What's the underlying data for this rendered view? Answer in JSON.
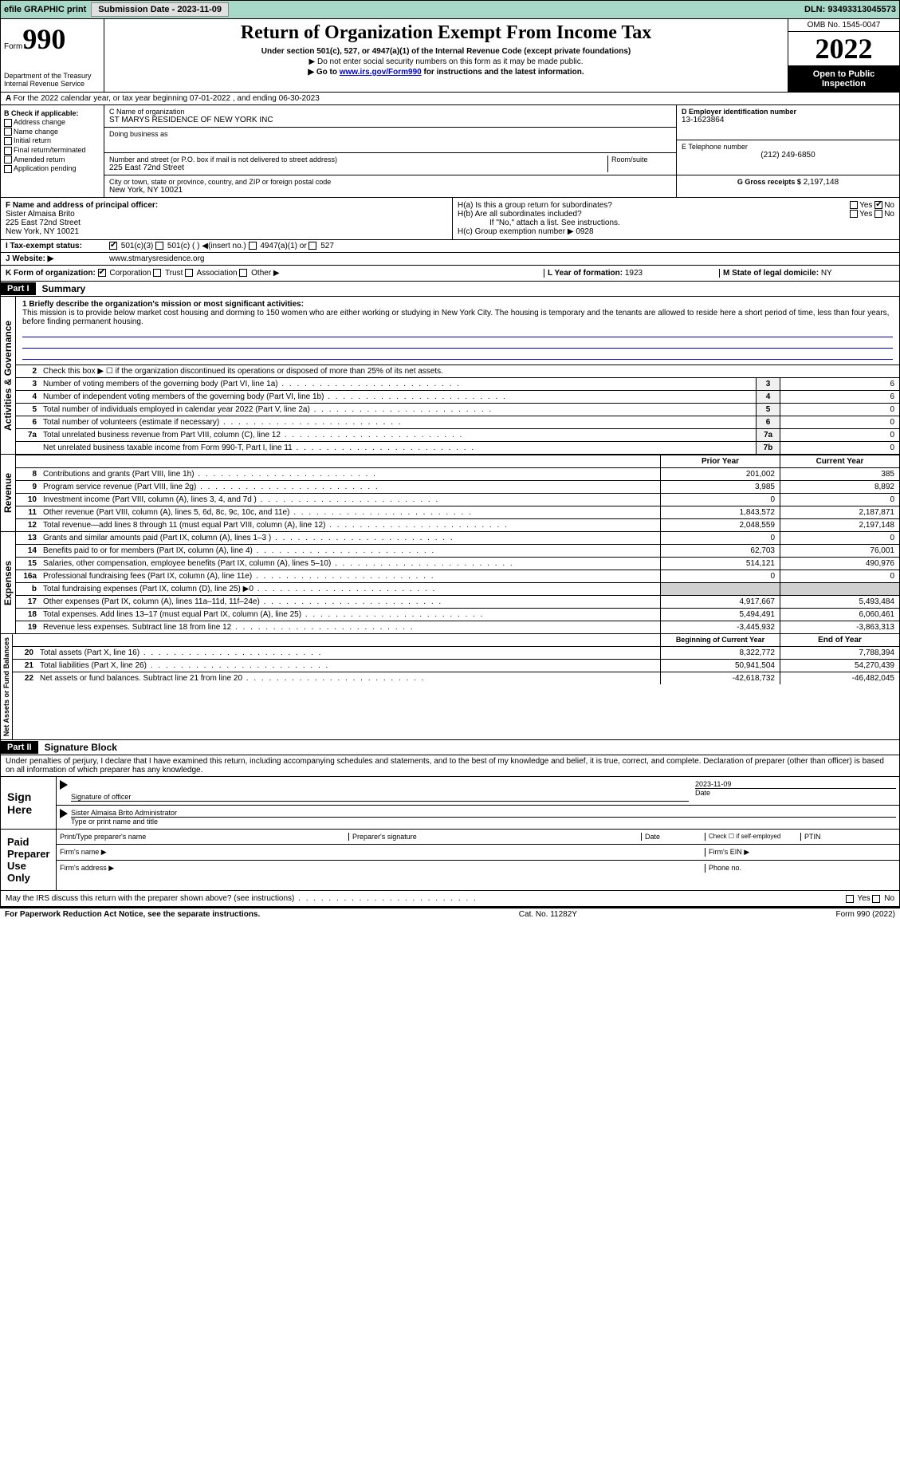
{
  "topbar": {
    "efile": "efile GRAPHIC print",
    "submit_btn": "Submission Date - 2023-11-09",
    "dln_label": "DLN:",
    "dln": "93493313045573"
  },
  "header": {
    "form_label": "Form",
    "form_num": "990",
    "dept": "Department of the Treasury",
    "irs": "Internal Revenue Service",
    "title": "Return of Organization Exempt From Income Tax",
    "sub": "Under section 501(c), 527, or 4947(a)(1) of the Internal Revenue Code (except private foundations)",
    "note1": "▶ Do not enter social security numbers on this form as it may be made public.",
    "note2_pre": "▶ Go to ",
    "note2_link": "www.irs.gov/Form990",
    "note2_post": " for instructions and the latest information.",
    "omb": "OMB No. 1545-0047",
    "year": "2022",
    "open": "Open to Public Inspection"
  },
  "section_a": "For the 2022 calendar year, or tax year beginning 07-01-2022   , and ending 06-30-2023",
  "col_b": {
    "hdr": "B Check if applicable:",
    "items": [
      "Address change",
      "Name change",
      "Initial return",
      "Final return/terminated",
      "Amended return",
      "Application pending"
    ]
  },
  "col_c": {
    "name_label": "C Name of organization",
    "name": "ST MARYS RESIDENCE OF NEW YORK INC",
    "dba_label": "Doing business as",
    "addr_label": "Number and street (or P.O. box if mail is not delivered to street address)",
    "room_label": "Room/suite",
    "addr": "225 East 72nd Street",
    "city_label": "City or town, state or province, country, and ZIP or foreign postal code",
    "city": "New York, NY  10021"
  },
  "col_d": {
    "ein_label": "D Employer identification number",
    "ein": "13-1623864",
    "phone_label": "E Telephone number",
    "phone": "(212) 249-6850",
    "gross_label": "G Gross receipts $",
    "gross": "2,197,148"
  },
  "officer": {
    "label": "F  Name and address of principal officer:",
    "name": "Sister Almaisa Brito",
    "addr1": "225 East 72nd Street",
    "addr2": "New York, NY  10021",
    "ha": "H(a)  Is this a group return for subordinates?",
    "hb": "H(b)  Are all subordinates included?",
    "hb_note": "If \"No,\" attach a list. See instructions.",
    "hc": "H(c)  Group exemption number ▶",
    "hc_val": "0928",
    "yes": "Yes",
    "no": "No"
  },
  "row_i": {
    "label": "I   Tax-exempt status:",
    "opts": [
      "501(c)(3)",
      "501(c) (   ) ◀(insert no.)",
      "4947(a)(1) or",
      "527"
    ]
  },
  "row_j": {
    "label": "J  Website: ▶",
    "val": "www.stmarysresidence.org"
  },
  "row_k": {
    "label": "K Form of organization:",
    "opts": [
      "Corporation",
      "Trust",
      "Association",
      "Other ▶"
    ],
    "l_label": "L Year of formation:",
    "l_val": "1923",
    "m_label": "M State of legal domicile:",
    "m_val": "NY"
  },
  "part1": {
    "hdr": "Part I",
    "title": "Summary",
    "sidebar1": "Activities & Governance",
    "sidebar2": "Revenue",
    "sidebar3": "Expenses",
    "sidebar4": "Net Assets or Fund Balances",
    "mission_label": "1  Briefly describe the organization's mission or most significant activities:",
    "mission": "This mission is to provide below market cost housing and dorming to 150 women who are either working or studying in New York City. The housing is temporary and the tenants are allowed to reside here a short period of time, less than four years, before finding permanent housing.",
    "line2": "Check this box ▶ ☐  if the organization discontinued its operations or disposed of more than 25% of its net assets.",
    "lines_gov": [
      {
        "n": "3",
        "t": "Number of voting members of the governing body (Part VI, line 1a)",
        "box": "3",
        "v": "6"
      },
      {
        "n": "4",
        "t": "Number of independent voting members of the governing body (Part VI, line 1b)",
        "box": "4",
        "v": "6"
      },
      {
        "n": "5",
        "t": "Total number of individuals employed in calendar year 2022 (Part V, line 2a)",
        "box": "5",
        "v": "0"
      },
      {
        "n": "6",
        "t": "Total number of volunteers (estimate if necessary)",
        "box": "6",
        "v": "0"
      },
      {
        "n": "7a",
        "t": "Total unrelated business revenue from Part VIII, column (C), line 12",
        "box": "7a",
        "v": "0"
      },
      {
        "n": "",
        "t": "Net unrelated business taxable income from Form 990-T, Part I, line 11",
        "box": "7b",
        "v": "0"
      }
    ],
    "prior_hdr": "Prior Year",
    "curr_hdr": "Current Year",
    "lines_rev": [
      {
        "n": "8",
        "t": "Contributions and grants (Part VIII, line 1h)",
        "p": "201,002",
        "c": "385"
      },
      {
        "n": "9",
        "t": "Program service revenue (Part VIII, line 2g)",
        "p": "3,985",
        "c": "8,892"
      },
      {
        "n": "10",
        "t": "Investment income (Part VIII, column (A), lines 3, 4, and 7d )",
        "p": "0",
        "c": "0"
      },
      {
        "n": "11",
        "t": "Other revenue (Part VIII, column (A), lines 5, 6d, 8c, 9c, 10c, and 11e)",
        "p": "1,843,572",
        "c": "2,187,871"
      },
      {
        "n": "12",
        "t": "Total revenue—add lines 8 through 11 (must equal Part VIII, column (A), line 12)",
        "p": "2,048,559",
        "c": "2,197,148"
      }
    ],
    "lines_exp": [
      {
        "n": "13",
        "t": "Grants and similar amounts paid (Part IX, column (A), lines 1–3 )",
        "p": "0",
        "c": "0"
      },
      {
        "n": "14",
        "t": "Benefits paid to or for members (Part IX, column (A), line 4)",
        "p": "62,703",
        "c": "76,001"
      },
      {
        "n": "15",
        "t": "Salaries, other compensation, employee benefits (Part IX, column (A), lines 5–10)",
        "p": "514,121",
        "c": "490,976"
      },
      {
        "n": "16a",
        "t": "Professional fundraising fees (Part IX, column (A), line 11e)",
        "p": "0",
        "c": "0"
      },
      {
        "n": "b",
        "t": "Total fundraising expenses (Part IX, column (D), line 25) ▶0",
        "p": "",
        "c": "",
        "shade": true
      },
      {
        "n": "17",
        "t": "Other expenses (Part IX, column (A), lines 11a–11d, 11f–24e)",
        "p": "4,917,667",
        "c": "5,493,484"
      },
      {
        "n": "18",
        "t": "Total expenses. Add lines 13–17 (must equal Part IX, column (A), line 25)",
        "p": "5,494,491",
        "c": "6,060,461"
      },
      {
        "n": "19",
        "t": "Revenue less expenses. Subtract line 18 from line 12",
        "p": "-3,445,932",
        "c": "-3,863,313"
      }
    ],
    "beg_hdr": "Beginning of Current Year",
    "end_hdr": "End of Year",
    "lines_net": [
      {
        "n": "20",
        "t": "Total assets (Part X, line 16)",
        "p": "8,322,772",
        "c": "7,788,394"
      },
      {
        "n": "21",
        "t": "Total liabilities (Part X, line 26)",
        "p": "50,941,504",
        "c": "54,270,439"
      },
      {
        "n": "22",
        "t": "Net assets or fund balances. Subtract line 21 from line 20",
        "p": "-42,618,732",
        "c": "-46,482,045"
      }
    ]
  },
  "part2": {
    "hdr": "Part II",
    "title": "Signature Block",
    "declaration": "Under penalties of perjury, I declare that I have examined this return, including accompanying schedules and statements, and to the best of my knowledge and belief, it is true, correct, and complete. Declaration of preparer (other than officer) is based on all information of which preparer has any knowledge.",
    "sign_here": "Sign Here",
    "sig_officer": "Signature of officer",
    "sig_date": "2023-11-09",
    "date_label": "Date",
    "typed_name": "Sister Almaisa Brito  Administrator",
    "typed_label": "Type or print name and title",
    "paid": "Paid Preparer Use Only",
    "prep_name": "Print/Type preparer's name",
    "prep_sig": "Preparer's signature",
    "check_self": "Check ☐ if self-employed",
    "ptin": "PTIN",
    "firm_name": "Firm's name ▶",
    "firm_ein": "Firm's EIN ▶",
    "firm_addr": "Firm's address ▶",
    "phone_no": "Phone no.",
    "discuss": "May the IRS discuss this return with the preparer shown above? (see instructions)"
  },
  "footer": {
    "left": "For Paperwork Reduction Act Notice, see the separate instructions.",
    "mid": "Cat. No. 11282Y",
    "right": "Form 990 (2022)"
  }
}
